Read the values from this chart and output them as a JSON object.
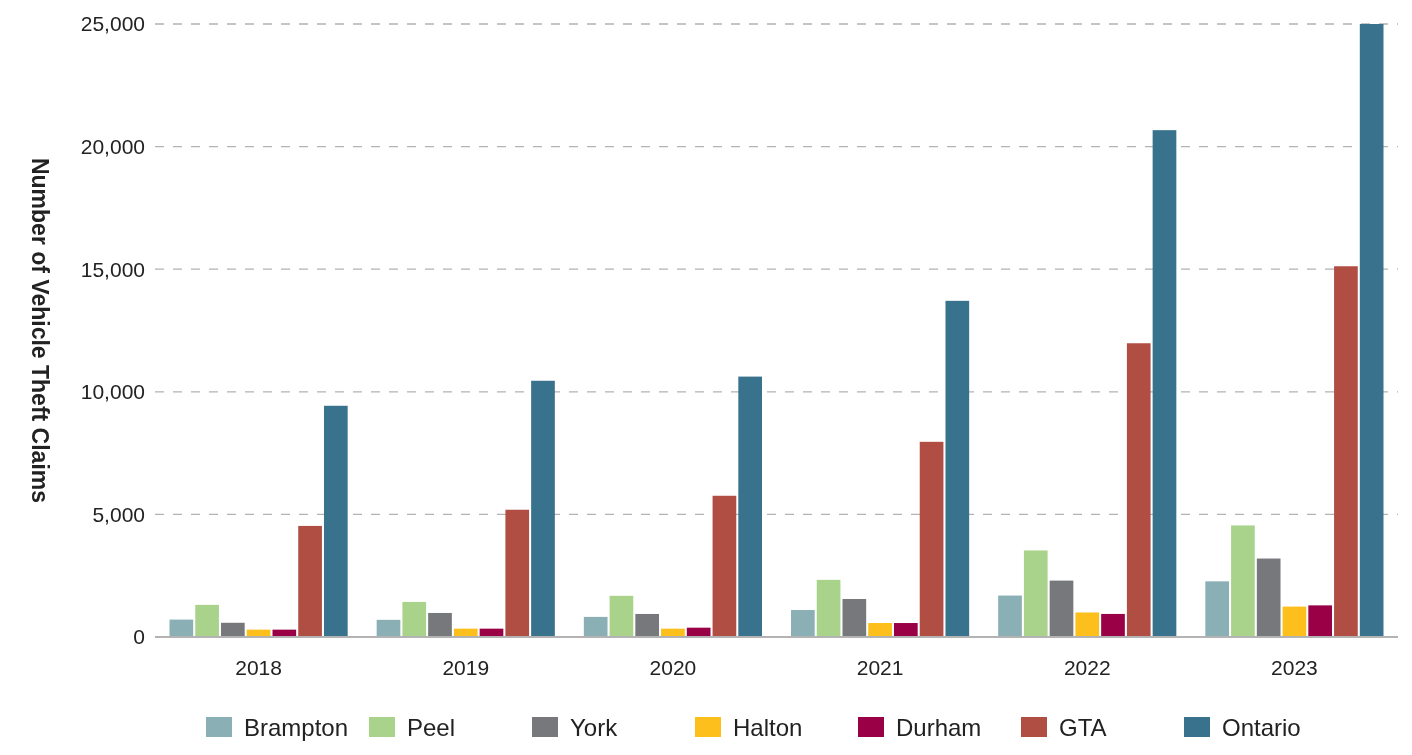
{
  "chart_data": {
    "type": "bar",
    "ylabel": "Number of Vehicle Theft Claims",
    "categories": [
      "2018",
      "2019",
      "2020",
      "2021",
      "2022",
      "2023"
    ],
    "series": [
      {
        "name": "Brampton",
        "color": "#8ab0b6",
        "values": [
          710,
          700,
          820,
          1100,
          1690,
          2270
        ]
      },
      {
        "name": "Peel",
        "color": "#a9d38b",
        "values": [
          1310,
          1430,
          1680,
          2330,
          3530,
          4550
        ]
      },
      {
        "name": "York",
        "color": "#77787b",
        "values": [
          580,
          980,
          940,
          1550,
          2300,
          3200
        ]
      },
      {
        "name": "Halton",
        "color": "#fcbf1b",
        "values": [
          300,
          340,
          340,
          570,
          1000,
          1240
        ]
      },
      {
        "name": "Durham",
        "color": "#9a0046",
        "values": [
          300,
          340,
          380,
          570,
          940,
          1290
        ]
      },
      {
        "name": "GTA",
        "color": "#b14e43",
        "values": [
          4530,
          5190,
          5760,
          7960,
          11980,
          15120
        ]
      },
      {
        "name": "Ontario",
        "color": "#38728c",
        "values": [
          9430,
          10450,
          10620,
          13710,
          20670,
          25000
        ]
      }
    ],
    "ylim": [
      0,
      25000
    ],
    "yticks": [
      {
        "value": 0,
        "label": "0"
      },
      {
        "value": 5000,
        "label": "5,000"
      },
      {
        "value": 10000,
        "label": "10,000"
      },
      {
        "value": 15000,
        "label": "15,000"
      },
      {
        "value": 20000,
        "label": "20,000"
      },
      {
        "value": 25000,
        "label": "25,000"
      }
    ],
    "grid": "y",
    "legend": "bottom"
  }
}
